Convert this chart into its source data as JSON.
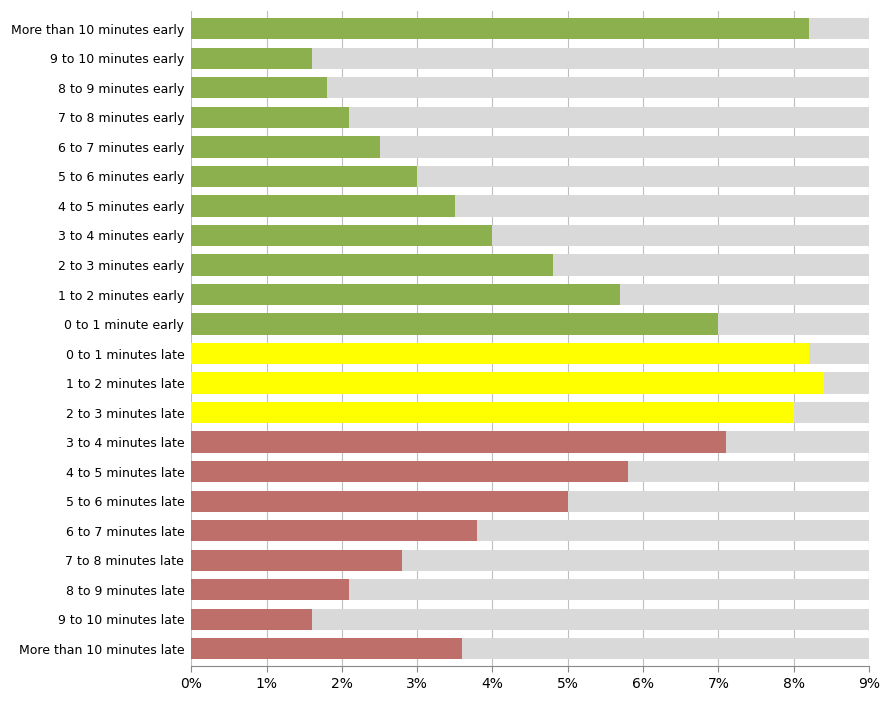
{
  "categories": [
    "More than 10 minutes early",
    "9 to 10 minutes early",
    "8 to 9 minutes early",
    "7 to 8 minutes early",
    "6 to 7 minutes early",
    "5 to 6 minutes early",
    "4 to 5 minutes early",
    "3 to 4 minutes early",
    "2 to 3 minutes early",
    "1 to 2 minutes early",
    "0 to 1 minute early",
    "0 to 1 minutes late",
    "1 to 2 minutes late",
    "2 to 3 minutes late",
    "3 to 4 minutes late",
    "4 to 5 minutes late",
    "5 to 6 minutes late",
    "6 to 7 minutes late",
    "7 to 8 minutes late",
    "8 to 9 minutes late",
    "9 to 10 minutes late",
    "More than 10 minutes late"
  ],
  "values": [
    0.082,
    0.016,
    0.018,
    0.021,
    0.025,
    0.03,
    0.035,
    0.04,
    0.048,
    0.057,
    0.07,
    0.082,
    0.084,
    0.08,
    0.071,
    0.058,
    0.05,
    0.038,
    0.028,
    0.021,
    0.016,
    0.036
  ],
  "bar_colors": [
    "#8db04e",
    "#8db04e",
    "#8db04e",
    "#8db04e",
    "#8db04e",
    "#8db04e",
    "#8db04e",
    "#8db04e",
    "#8db04e",
    "#8db04e",
    "#8db04e",
    "#ffff00",
    "#ffff00",
    "#ffff00",
    "#be6f6a",
    "#be6f6a",
    "#be6f6a",
    "#be6f6a",
    "#be6f6a",
    "#be6f6a",
    "#be6f6a",
    "#be6f6a"
  ],
  "bg_bar_color": "#d9d9d9",
  "xlim": [
    0,
    0.09
  ],
  "xticks": [
    0,
    0.01,
    0.02,
    0.03,
    0.04,
    0.05,
    0.06,
    0.07,
    0.08,
    0.09
  ],
  "xtick_labels": [
    "0%",
    "1%",
    "2%",
    "3%",
    "4%",
    "5%",
    "6%",
    "7%",
    "8%",
    "9%"
  ],
  "background_color": "#ffffff",
  "grid_color": "#bfbfbf",
  "bar_height": 0.72,
  "bg_bar_width": 0.09,
  "label_fontsize": 9,
  "tick_fontsize": 10
}
